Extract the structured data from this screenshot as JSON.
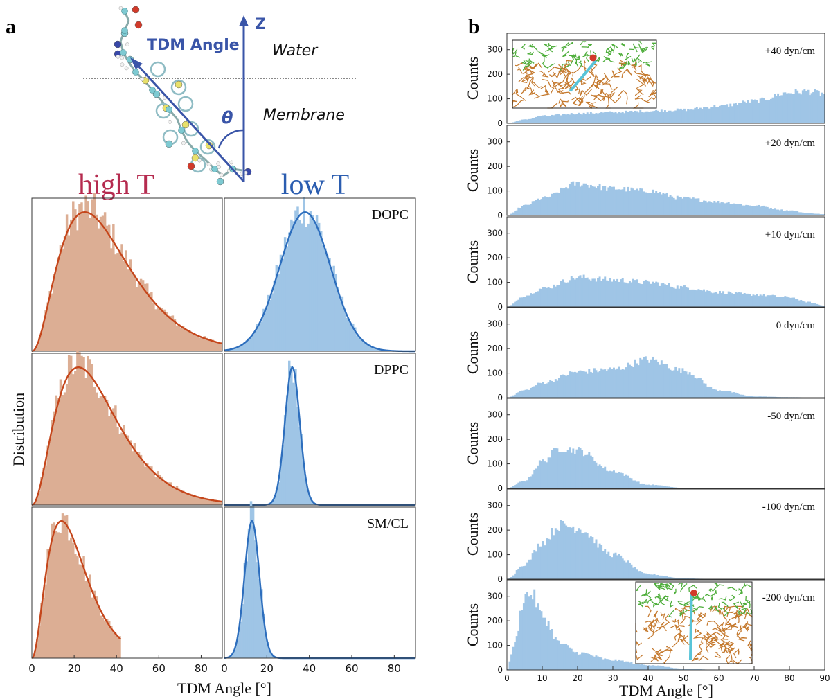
{
  "colors": {
    "high_fill": "#dcae94",
    "high_curve": "#c5461b",
    "low_fill": "#9fc5e6",
    "low_curve": "#2d6ebd",
    "high_title": "#b52b4f",
    "low_title": "#2b5db0",
    "schematic_blue": "#3a55a8",
    "frame": "#333333"
  },
  "panel_a": {
    "label": "a",
    "schematic": {
      "tdm_label": "TDM Angle",
      "z_label": "Z",
      "theta_label": "θ",
      "water_label": "Water",
      "membrane_label": "Membrane"
    },
    "high_title": "high T",
    "low_title": "low T",
    "ylabel": "Distribution",
    "xlabel": "TDM Angle [°]",
    "xticks": [
      "0",
      "20",
      "40",
      "60",
      "80"
    ],
    "lipids": [
      "DOPC",
      "DPPC",
      "SM/CL"
    ]
  },
  "panel_b": {
    "label": "b",
    "ylabel": "Counts",
    "xlabel": "TDM Angle [°]",
    "yticks": [
      "0",
      "100",
      "200",
      "300"
    ],
    "xticks": [
      "0",
      "10",
      "20",
      "30",
      "40",
      "50",
      "60",
      "70",
      "80",
      "90"
    ],
    "tensions": [
      "+40 dyn/cm",
      "+20 dyn/cm",
      "+10 dyn/cm",
      "0 dyn/cm",
      "-50 dyn/cm",
      "-100 dyn/cm",
      "-200 dyn/cm"
    ]
  },
  "chart_data": [
    {
      "type": "bar",
      "panel": "a",
      "xlabel": "TDM Angle [°]",
      "ylabel": "Distribution",
      "xlim": [
        0,
        90
      ],
      "bin_width_deg": 1,
      "series": [
        {
          "name": "high T",
          "lipid": "DOPC",
          "fit_peak_deg": 25,
          "fit_max_deg": 90
        },
        {
          "name": "low T",
          "lipid": "DOPC",
          "fit_peak_deg": 38,
          "fit_sd_deg": 12
        },
        {
          "name": "high T",
          "lipid": "DPPC",
          "fit_peak_deg": 22,
          "fit_max_deg": 90
        },
        {
          "name": "low T",
          "lipid": "DPPC",
          "fit_peak_deg": 32,
          "fit_sd_deg": 3.5
        },
        {
          "name": "high T",
          "lipid": "SM/CL",
          "fit_peak_deg": 14,
          "fit_max_deg": 42
        },
        {
          "name": "low T",
          "lipid": "SM/CL",
          "fit_peak_deg": 13,
          "fit_sd_deg": 3.5
        }
      ]
    },
    {
      "type": "bar",
      "panel": "b",
      "xlabel": "TDM Angle [°]",
      "ylabel": "Counts",
      "xlim": [
        0,
        90
      ],
      "ylim": [
        0,
        350
      ],
      "bin_width_deg": 0.5,
      "series": [
        {
          "name": "+40 dyn/cm",
          "x": [
            0,
            5,
            10,
            20,
            30,
            40,
            50,
            60,
            70,
            80,
            85,
            90
          ],
          "values": [
            0,
            15,
            30,
            40,
            45,
            50,
            55,
            70,
            90,
            125,
            130,
            120
          ]
        },
        {
          "name": "+20 dyn/cm",
          "x": [
            0,
            5,
            10,
            20,
            30,
            40,
            50,
            60,
            70,
            80,
            85,
            90
          ],
          "values": [
            0,
            40,
            70,
            130,
            110,
            100,
            70,
            55,
            40,
            20,
            10,
            5
          ]
        },
        {
          "name": "+10 dyn/cm",
          "x": [
            0,
            5,
            10,
            20,
            30,
            40,
            50,
            60,
            70,
            80,
            85,
            90
          ],
          "values": [
            0,
            45,
            75,
            120,
            110,
            100,
            80,
            60,
            50,
            40,
            20,
            5
          ]
        },
        {
          "name": "0 dyn/cm",
          "x": [
            0,
            5,
            10,
            20,
            30,
            40,
            50,
            60,
            70,
            80,
            90
          ],
          "values": [
            0,
            30,
            60,
            105,
            115,
            155,
            110,
            30,
            5,
            2,
            0
          ]
        },
        {
          "name": "-50 dyn/cm",
          "x": [
            0,
            5,
            10,
            15,
            20,
            30,
            40,
            50,
            60,
            90
          ],
          "values": [
            0,
            30,
            110,
            165,
            155,
            70,
            15,
            2,
            0,
            0
          ]
        },
        {
          "name": "-100 dyn/cm",
          "x": [
            0,
            5,
            10,
            15,
            20,
            30,
            40,
            50,
            60,
            90
          ],
          "values": [
            0,
            60,
            150,
            220,
            210,
            100,
            20,
            3,
            0,
            0
          ]
        },
        {
          "name": "-200 dyn/cm",
          "x": [
            0,
            2,
            5,
            7,
            10,
            15,
            20,
            30,
            40,
            50,
            60,
            90
          ],
          "values": [
            0,
            100,
            300,
            310,
            220,
            110,
            70,
            40,
            20,
            5,
            0,
            0
          ]
        }
      ]
    }
  ]
}
